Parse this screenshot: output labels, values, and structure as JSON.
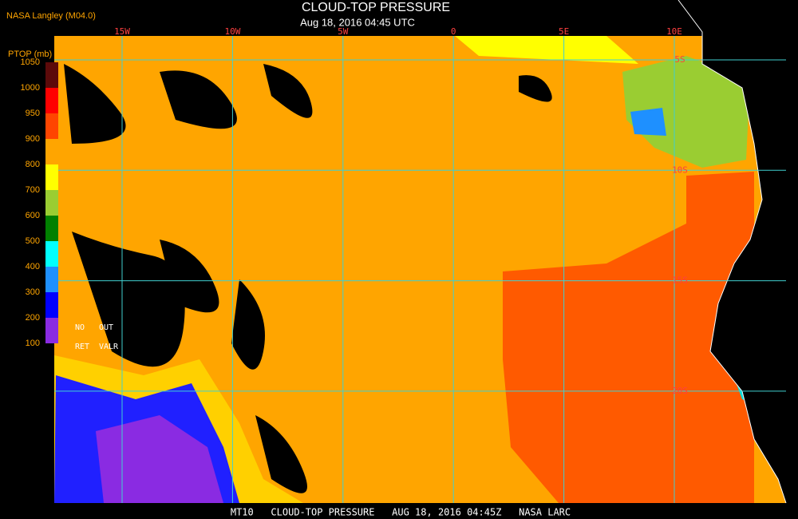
{
  "header": {
    "source": "NASA Langley (M04.0)",
    "title": "CLOUD-TOP PRESSURE",
    "timestamp": "Aug 18, 2016 04:45 UTC"
  },
  "colorbar": {
    "label": "PTOP (mb)",
    "ticks": [
      1050,
      1000,
      950,
      900,
      800,
      700,
      600,
      500,
      400,
      300,
      200,
      100
    ],
    "colors": [
      "#5c0a0a",
      "#ff0000",
      "#ff4500",
      "#ffa500",
      "#ffff00",
      "#9acd32",
      "#008000",
      "#00ffff",
      "#1e90ff",
      "#0000ff",
      "#8a2be2"
    ],
    "no_retrieval": [
      "NO",
      "RET"
    ],
    "out_of_range": [
      "OUT",
      "VALR"
    ]
  },
  "grid": {
    "longitudes": [
      "15W",
      "10W",
      "5W",
      "0",
      "5E",
      "10E"
    ],
    "latitudes": [
      "5S",
      "10S",
      "15S",
      "20S"
    ]
  },
  "footer": "MT10   CLOUD-TOP PRESSURE   AUG 18, 2016 04:45Z   NASA LARC"
}
